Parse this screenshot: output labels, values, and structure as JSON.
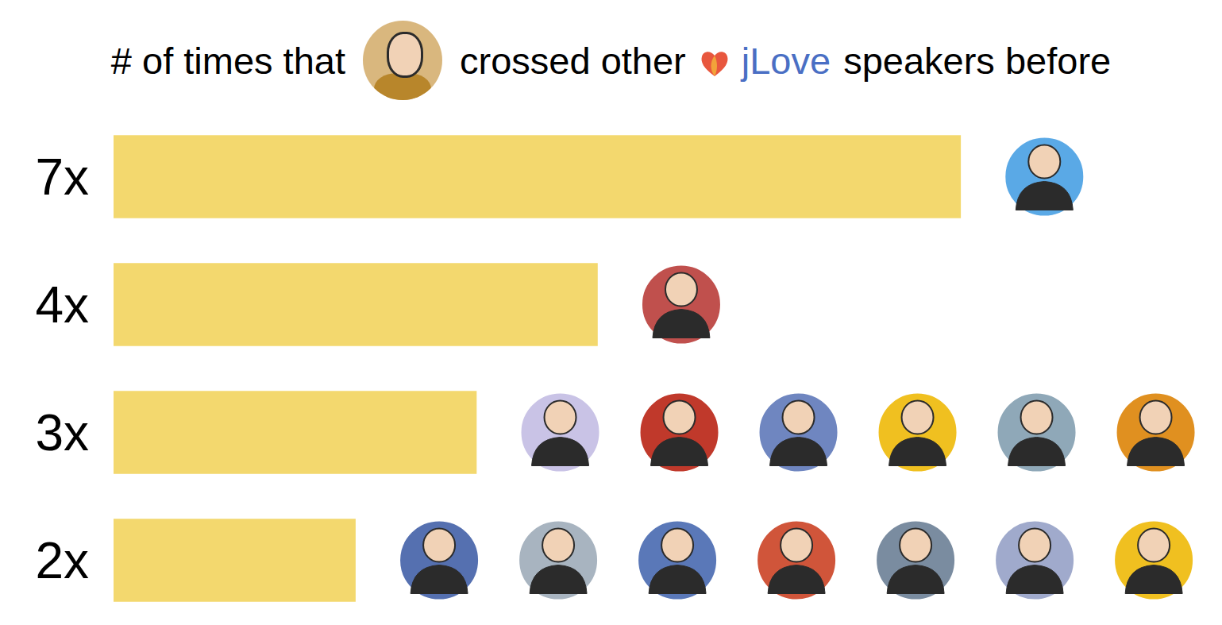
{
  "chart_data": {
    "type": "bar",
    "orientation": "horizontal",
    "title": [
      "# of times that",
      "crossed other",
      "jLove",
      "speakers before"
    ],
    "categories": [
      "7x",
      "4x",
      "3x",
      "2x"
    ],
    "values": [
      7,
      4,
      3,
      2
    ],
    "speakers": [
      1,
      1,
      6,
      7
    ],
    "color": "#f3d86e",
    "xlim": [
      0,
      9
    ],
    "tick_labels": "y",
    "grid": false
  }
}
